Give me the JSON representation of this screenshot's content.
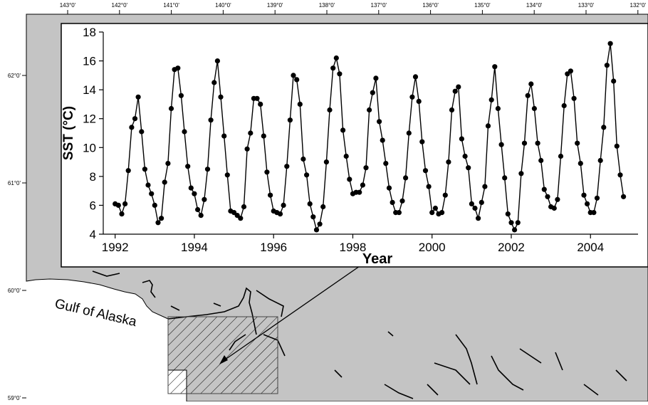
{
  "map": {
    "top_ticks": [
      "143°0'",
      "142°0'",
      "141°0'",
      "140°0'",
      "139°0'",
      "138°0'",
      "137°0'",
      "136°0'",
      "135°0'",
      "134°0'",
      "133°0'",
      "132°0'"
    ],
    "left_ticks": [
      "62°0'",
      "61°0'",
      "60°0'",
      "59°0'"
    ],
    "place_label": "Gulf of Alaska",
    "colors": {
      "land": "#c4c4c4",
      "sea": "#ffffff",
      "line": "#000000"
    }
  },
  "chart_data": {
    "type": "line",
    "title": "",
    "xlabel": "Year",
    "ylabel": "SST (°C)",
    "xlim": [
      1991.7,
      2005.2
    ],
    "ylim": [
      4,
      18
    ],
    "xticks": [
      1992,
      1994,
      1996,
      1998,
      2000,
      2002,
      2004
    ],
    "yticks": [
      4,
      6,
      8,
      10,
      12,
      14,
      16,
      18
    ],
    "grid": false,
    "marker": "filled-circle",
    "series": [
      {
        "name": "",
        "x_start_year": 1992.0,
        "x_step_months": 1,
        "values": [
          6.1,
          6.0,
          5.4,
          6.1,
          8.4,
          11.4,
          12.0,
          13.5,
          11.1,
          8.5,
          7.4,
          6.8,
          6.0,
          4.8,
          5.1,
          7.6,
          8.9,
          12.7,
          15.4,
          15.5,
          13.6,
          11.1,
          8.7,
          7.2,
          6.8,
          5.7,
          5.3,
          6.4,
          8.5,
          11.9,
          14.5,
          16.0,
          13.5,
          10.8,
          8.1,
          5.6,
          5.5,
          5.3,
          5.1,
          5.9,
          9.9,
          11.0,
          13.4,
          13.4,
          13.0,
          10.8,
          8.3,
          6.7,
          5.6,
          5.5,
          5.4,
          6.0,
          8.7,
          11.9,
          15.0,
          14.7,
          13.0,
          9.2,
          8.1,
          6.1,
          5.2,
          4.3,
          4.7,
          5.9,
          9.0,
          12.6,
          15.5,
          16.2,
          15.1,
          11.2,
          9.4,
          7.8,
          6.8,
          6.9,
          6.9,
          7.4,
          8.6,
          12.6,
          13.8,
          14.8,
          11.8,
          10.5,
          8.9,
          7.2,
          6.2,
          5.5,
          5.5,
          6.3,
          7.9,
          11.0,
          13.5,
          14.9,
          13.2,
          10.4,
          8.4,
          7.3,
          5.5,
          5.8,
          5.4,
          5.5,
          6.7,
          9.0,
          12.6,
          13.9,
          14.2,
          10.6,
          9.4,
          8.6,
          6.1,
          5.8,
          5.1,
          6.2,
          7.3,
          11.5,
          13.3,
          15.6,
          12.7,
          10.2,
          7.9,
          5.4,
          4.8,
          4.3,
          4.8,
          8.2,
          10.3,
          13.6,
          14.4,
          12.7,
          10.3,
          9.1,
          7.1,
          6.6,
          5.9,
          5.8,
          6.4,
          9.4,
          12.9,
          15.1,
          15.3,
          13.4,
          10.3,
          8.9,
          6.7,
          6.1,
          5.5,
          5.5,
          6.5,
          9.1,
          11.4,
          15.7,
          17.2,
          14.6,
          10.1,
          8.1,
          6.6
        ]
      }
    ]
  }
}
